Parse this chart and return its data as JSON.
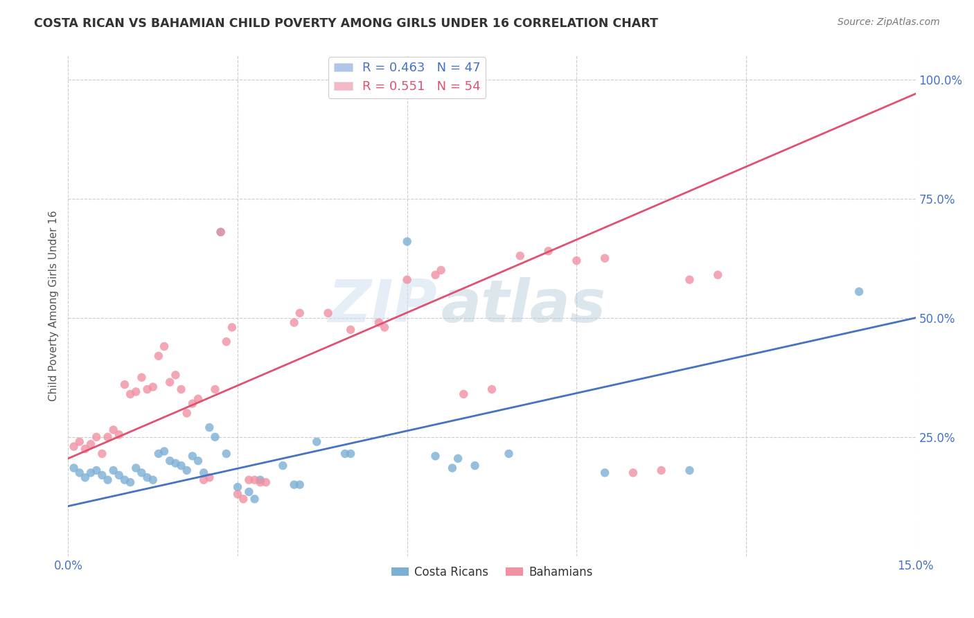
{
  "title": "COSTA RICAN VS BAHAMIAN CHILD POVERTY AMONG GIRLS UNDER 16 CORRELATION CHART",
  "source": "Source: ZipAtlas.com",
  "ylabel": "Child Poverty Among Girls Under 16",
  "xlim": [
    0.0,
    0.15
  ],
  "ylim": [
    0.0,
    1.05
  ],
  "xticks": [
    0.0,
    0.03,
    0.06,
    0.09,
    0.12,
    0.15
  ],
  "xtick_labels": [
    "0.0%",
    "",
    "",
    "",
    "",
    "15.0%"
  ],
  "yticks": [
    0.25,
    0.5,
    0.75,
    1.0
  ],
  "ytick_labels": [
    "25.0%",
    "50.0%",
    "75.0%",
    "100.0%"
  ],
  "legend_entries": [
    {
      "label": "R = 0.463   N = 47",
      "color": "#aec6e8",
      "text_color": "#4472c4"
    },
    {
      "label": "R = 0.551   N = 54",
      "color": "#f4b8c8",
      "text_color": "#e05070"
    }
  ],
  "costa_ricans_color": "#7bafd4",
  "bahamians_color": "#f090a0",
  "costa_ricans_line_color": "#4472c4",
  "bahamians_line_color": "#e05070",
  "watermark_zip": "ZIP",
  "watermark_atlas": "atlas",
  "background_color": "#ffffff",
  "grid_color": "#cccccc",
  "costa_ricans": [
    [
      0.001,
      0.185
    ],
    [
      0.002,
      0.175
    ],
    [
      0.003,
      0.165
    ],
    [
      0.004,
      0.175
    ],
    [
      0.005,
      0.18
    ],
    [
      0.006,
      0.17
    ],
    [
      0.007,
      0.16
    ],
    [
      0.008,
      0.18
    ],
    [
      0.009,
      0.17
    ],
    [
      0.01,
      0.16
    ],
    [
      0.011,
      0.155
    ],
    [
      0.012,
      0.185
    ],
    [
      0.013,
      0.175
    ],
    [
      0.014,
      0.165
    ],
    [
      0.015,
      0.16
    ],
    [
      0.016,
      0.215
    ],
    [
      0.017,
      0.22
    ],
    [
      0.018,
      0.2
    ],
    [
      0.019,
      0.195
    ],
    [
      0.02,
      0.19
    ],
    [
      0.021,
      0.18
    ],
    [
      0.022,
      0.21
    ],
    [
      0.023,
      0.2
    ],
    [
      0.024,
      0.175
    ],
    [
      0.025,
      0.27
    ],
    [
      0.026,
      0.25
    ],
    [
      0.027,
      0.68
    ],
    [
      0.028,
      0.215
    ],
    [
      0.03,
      0.145
    ],
    [
      0.032,
      0.135
    ],
    [
      0.033,
      0.12
    ],
    [
      0.034,
      0.16
    ],
    [
      0.038,
      0.19
    ],
    [
      0.04,
      0.15
    ],
    [
      0.041,
      0.15
    ],
    [
      0.044,
      0.24
    ],
    [
      0.049,
      0.215
    ],
    [
      0.05,
      0.215
    ],
    [
      0.06,
      0.66
    ],
    [
      0.065,
      0.21
    ],
    [
      0.068,
      0.185
    ],
    [
      0.069,
      0.205
    ],
    [
      0.072,
      0.19
    ],
    [
      0.078,
      0.215
    ],
    [
      0.095,
      0.175
    ],
    [
      0.11,
      0.18
    ],
    [
      0.14,
      0.555
    ]
  ],
  "bahamians": [
    [
      0.001,
      0.23
    ],
    [
      0.002,
      0.24
    ],
    [
      0.003,
      0.225
    ],
    [
      0.004,
      0.235
    ],
    [
      0.005,
      0.25
    ],
    [
      0.006,
      0.215
    ],
    [
      0.007,
      0.25
    ],
    [
      0.008,
      0.265
    ],
    [
      0.009,
      0.255
    ],
    [
      0.01,
      0.36
    ],
    [
      0.011,
      0.34
    ],
    [
      0.012,
      0.345
    ],
    [
      0.013,
      0.375
    ],
    [
      0.014,
      0.35
    ],
    [
      0.015,
      0.355
    ],
    [
      0.016,
      0.42
    ],
    [
      0.017,
      0.44
    ],
    [
      0.018,
      0.365
    ],
    [
      0.019,
      0.38
    ],
    [
      0.02,
      0.35
    ],
    [
      0.021,
      0.3
    ],
    [
      0.022,
      0.32
    ],
    [
      0.023,
      0.33
    ],
    [
      0.024,
      0.16
    ],
    [
      0.025,
      0.165
    ],
    [
      0.026,
      0.35
    ],
    [
      0.027,
      0.68
    ],
    [
      0.028,
      0.45
    ],
    [
      0.029,
      0.48
    ],
    [
      0.03,
      0.13
    ],
    [
      0.031,
      0.12
    ],
    [
      0.032,
      0.16
    ],
    [
      0.033,
      0.16
    ],
    [
      0.034,
      0.155
    ],
    [
      0.035,
      0.155
    ],
    [
      0.04,
      0.49
    ],
    [
      0.041,
      0.51
    ],
    [
      0.046,
      0.51
    ],
    [
      0.05,
      0.475
    ],
    [
      0.055,
      0.49
    ],
    [
      0.056,
      0.48
    ],
    [
      0.06,
      0.58
    ],
    [
      0.065,
      0.59
    ],
    [
      0.066,
      0.6
    ],
    [
      0.07,
      0.34
    ],
    [
      0.075,
      0.35
    ],
    [
      0.08,
      0.63
    ],
    [
      0.085,
      0.64
    ],
    [
      0.09,
      0.62
    ],
    [
      0.095,
      0.625
    ],
    [
      0.1,
      0.175
    ],
    [
      0.105,
      0.18
    ],
    [
      0.11,
      0.58
    ],
    [
      0.115,
      0.59
    ]
  ],
  "cr_line": {
    "x0": 0.0,
    "x1": 0.15,
    "y0": 0.105,
    "y1": 0.5
  },
  "bah_line": {
    "x0": 0.0,
    "x1": 0.15,
    "y0": 0.205,
    "y1": 0.97
  }
}
